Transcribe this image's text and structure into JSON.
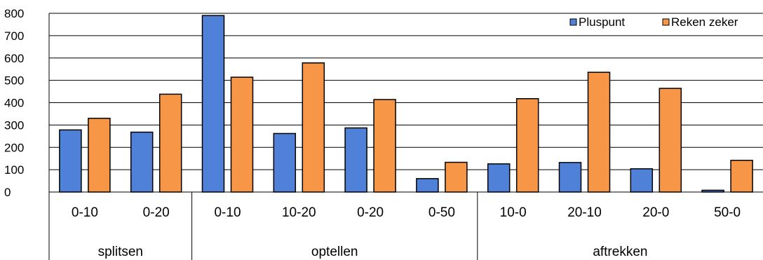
{
  "chart_data": {
    "type": "bar",
    "title": "",
    "xlabel": "",
    "ylabel": "",
    "ylim": [
      0,
      800
    ],
    "yticks": [
      0,
      100,
      200,
      300,
      400,
      500,
      600,
      700,
      800
    ],
    "grid": true,
    "legend_position": "top-right",
    "groups": [
      {
        "label": "splitsen",
        "categories": [
          "0-10",
          "0-20"
        ]
      },
      {
        "label": "optellen",
        "categories": [
          "0-10",
          "10-20",
          "0-20",
          "0-50"
        ]
      },
      {
        "label": "aftrekken",
        "categories": [
          "10-0",
          "20-10",
          "20-0",
          "50-0"
        ]
      }
    ],
    "categories": [
      "0-10",
      "0-20",
      "0-10",
      "10-20",
      "0-20",
      "0-50",
      "10-0",
      "20-10",
      "20-0",
      "50-0"
    ],
    "series": [
      {
        "name": "Pluspunt",
        "color": "#4F81D9",
        "values": [
          278,
          268,
          790,
          262,
          287,
          60,
          126,
          132,
          104,
          8
        ]
      },
      {
        "name": "Reken zeker",
        "color": "#F79646",
        "values": [
          330,
          438,
          514,
          578,
          414,
          133,
          418,
          536,
          464,
          142
        ]
      }
    ]
  }
}
